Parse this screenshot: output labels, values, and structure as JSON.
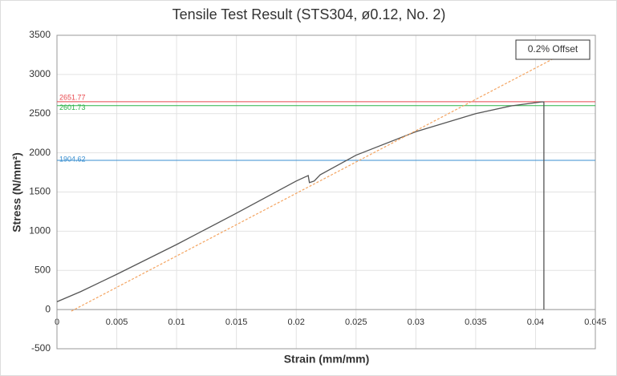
{
  "chart_data": {
    "type": "line",
    "title": "Tensile Test Result (STS304, ø0.12, No. 2)",
    "x_label": "Strain (mm/mm)",
    "y_label": "Stress (N/mm²)",
    "xlim": [
      0,
      0.045
    ],
    "ylim": [
      -500,
      3500
    ],
    "xticks": [
      0,
      0.005,
      0.01,
      0.015,
      0.02,
      0.025,
      0.03,
      0.035,
      0.04,
      0.045
    ],
    "yticks": [
      -500,
      0,
      500,
      1000,
      1500,
      2000,
      2500,
      3000,
      3500
    ],
    "grid": true,
    "legend_position": "upper right",
    "series": [
      {
        "color": "#555555",
        "dashed": false,
        "x": [
          0,
          0.002,
          0.005,
          0.01,
          0.015,
          0.02,
          0.021,
          0.0211,
          0.0215,
          0.022,
          0.025,
          0.03,
          0.035,
          0.038,
          0.0405,
          0.0407,
          0.0407
        ],
        "values": [
          100,
          230,
          450,
          830,
          1230,
          1640,
          1710,
          1620,
          1640,
          1720,
          1970,
          2270,
          2500,
          2600,
          2650,
          2650,
          0
        ]
      },
      {
        "name": "0.2% Offset",
        "color": "#f4a460",
        "dashed": true,
        "x": [
          0.0012,
          0.0416
        ],
        "values": [
          -20,
          3210
        ]
      }
    ],
    "reference_lines": [
      {
        "value": 2651.77,
        "color": "#e8474c"
      },
      {
        "value": 2601.73,
        "color": "#2db34a"
      },
      {
        "value": 1904.62,
        "color": "#3a8fd0"
      }
    ]
  }
}
